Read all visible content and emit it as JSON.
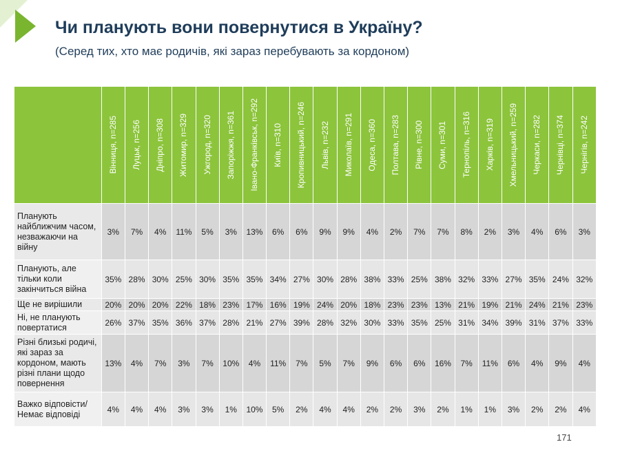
{
  "title": "Чи планують вони повернутися в Україну?",
  "subtitle": "(Серед тих, хто має родичів, які зараз перебувають за кордоном)",
  "page_number": "171",
  "colors": {
    "header_green": "#8cc43c",
    "title_blue": "#1f3d5a",
    "cell_gray": "#d6d6d6"
  },
  "columns": [
    "Вінниця, n=285",
    "Луцьк, n=256",
    "Дніпро, n=308",
    "Житомир, n=329",
    "Ужгород, n=320",
    "Запоріжжя, n=361",
    "Івано-Франківськ, n=292",
    "Київ, n=310",
    "Кропивницький, n=246",
    "Львів, n=232",
    "Миколаїв, n=291",
    "Одеса, n=360",
    "Полтава, n=283",
    "Рівне, n=300",
    "Суми, n=301",
    "Тернопіль, n=316",
    "Харків, n=319",
    "Хмельницький, n=259",
    "Черкаси, n=282",
    "Чернівці, n=374",
    "Чернігів, n=242"
  ],
  "rows": [
    {
      "label": "Планують найближчим часом, незважаючи на війну",
      "values": [
        "3%",
        "7%",
        "4%",
        "11%",
        "5%",
        "3%",
        "13%",
        "6%",
        "6%",
        "9%",
        "9%",
        "4%",
        "2%",
        "7%",
        "7%",
        "8%",
        "2%",
        "3%",
        "4%",
        "6%",
        "3%"
      ]
    },
    {
      "label": "Планують, але тільки коли закінчиться війна",
      "values": [
        "35%",
        "28%",
        "30%",
        "25%",
        "30%",
        "35%",
        "35%",
        "34%",
        "27%",
        "30%",
        "28%",
        "38%",
        "33%",
        "25%",
        "38%",
        "32%",
        "33%",
        "27%",
        "35%",
        "24%",
        "32%"
      ]
    },
    {
      "label": "Ще не вирішили",
      "values": [
        "20%",
        "20%",
        "20%",
        "22%",
        "18%",
        "23%",
        "17%",
        "16%",
        "19%",
        "24%",
        "20%",
        "18%",
        "23%",
        "23%",
        "13%",
        "21%",
        "19%",
        "21%",
        "24%",
        "21%",
        "23%"
      ]
    },
    {
      "label": "Ні, не планують повертатися",
      "values": [
        "26%",
        "37%",
        "35%",
        "36%",
        "37%",
        "28%",
        "21%",
        "27%",
        "39%",
        "28%",
        "32%",
        "30%",
        "33%",
        "35%",
        "25%",
        "31%",
        "34%",
        "39%",
        "31%",
        "37%",
        "33%"
      ]
    },
    {
      "label": "Різні близькі родичі, які зараз за кордоном, мають різні плани щодо повернення",
      "values": [
        "13%",
        "4%",
        "7%",
        "3%",
        "7%",
        "10%",
        "4%",
        "11%",
        "7%",
        "5%",
        "7%",
        "9%",
        "6%",
        "6%",
        "16%",
        "7%",
        "11%",
        "6%",
        "4%",
        "9%",
        "4%"
      ]
    },
    {
      "label": "Важко відповісти/Немає відповіді",
      "values": [
        "4%",
        "4%",
        "4%",
        "3%",
        "3%",
        "1%",
        "10%",
        "5%",
        "2%",
        "4%",
        "4%",
        "2%",
        "2%",
        "3%",
        "2%",
        "1%",
        "1%",
        "3%",
        "2%",
        "2%",
        "4%"
      ]
    }
  ]
}
